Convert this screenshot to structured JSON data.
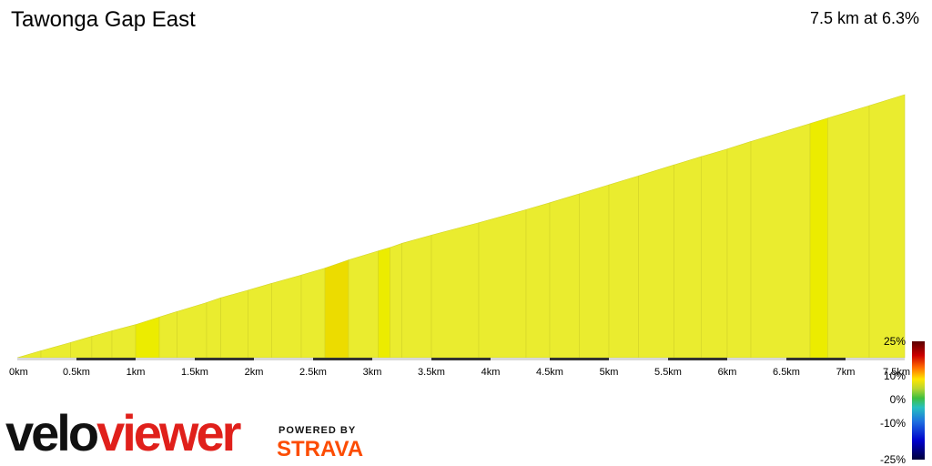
{
  "header": {
    "title": "Tawonga Gap East",
    "summary": "7.5 km at 6.3%"
  },
  "legend": {
    "labels": [
      "25%",
      "10%",
      "0%",
      "-10%",
      "-25%"
    ]
  },
  "branding": {
    "logo_part1": "velo",
    "logo_part2": "viewer",
    "powered_by": "POWERED BY",
    "strava": "STRAVA"
  },
  "colors": {
    "main_fill": "#eaec2f",
    "steep_fill": "#ecec00",
    "steepest_fill": "#ecdc00",
    "segment_marker": "#333333",
    "logo_red": "#e0201b",
    "strava_orange": "#fc4c02"
  },
  "chart_data": {
    "type": "area",
    "title": "Tawonga Gap East",
    "x_unit": "km",
    "xlim": [
      0,
      7.5
    ],
    "x_ticks": [
      0,
      0.5,
      1,
      1.5,
      2,
      2.5,
      3,
      3.5,
      4,
      4.5,
      5,
      5.5,
      6,
      6.5,
      7,
      7.5
    ],
    "x_tick_labels": [
      "0km",
      "0.5km",
      "1km",
      "1.5km",
      "2km",
      "2.5km",
      "3km",
      "3.5km",
      "4km",
      "4.5km",
      "5km",
      "5.5km",
      "6km",
      "6.5km",
      "7km",
      "7.5km"
    ],
    "distance_km": [
      0,
      0.2,
      0.45,
      0.63,
      0.8,
      1.0,
      1.2,
      1.35,
      1.6,
      1.72,
      1.95,
      2.15,
      2.4,
      2.6,
      2.8,
      3.05,
      3.15,
      3.25,
      3.5,
      3.9,
      4.3,
      4.5,
      4.75,
      5.0,
      5.25,
      5.55,
      5.78,
      6.0,
      6.2,
      6.7,
      6.85,
      7.2,
      7.5
    ],
    "relative_elevation_m": [
      0,
      10,
      22,
      31,
      39,
      48,
      59,
      67,
      80,
      87,
      98,
      108,
      120,
      130,
      142,
      155,
      160,
      166,
      178,
      196,
      215,
      225,
      238,
      251,
      264,
      280,
      292,
      303,
      314,
      340,
      348,
      366,
      382
    ],
    "segment_gradient_class": [
      "main",
      "main",
      "main",
      "main",
      "main",
      "steep",
      "main",
      "main",
      "main",
      "main",
      "main",
      "main",
      "main",
      "steepest",
      "main",
      "steep",
      "main",
      "main",
      "main",
      "main",
      "main",
      "main",
      "main",
      "main",
      "main",
      "main",
      "main",
      "main",
      "main",
      "steep",
      "main",
      "main"
    ],
    "grid": false
  }
}
